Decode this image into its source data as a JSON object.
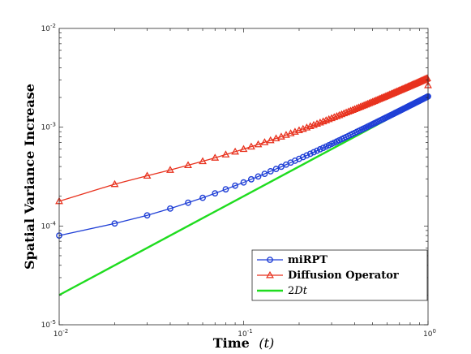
{
  "chart_data": {
    "type": "line",
    "xscale": "log",
    "yscale": "log",
    "xlim": [
      0.01,
      1
    ],
    "ylim": [
      1e-05,
      0.01
    ],
    "grid": false,
    "legend_position": "bottom-right",
    "xlabel": "Time",
    "xlabel_var": "(t)",
    "ylabel": "Spatial Variance Increase",
    "xticks": [
      {
        "value": 0.01,
        "base": "10",
        "exp": "-2"
      },
      {
        "value": 0.1,
        "base": "10",
        "exp": "-1"
      },
      {
        "value": 1,
        "base": "10",
        "exp": "0"
      }
    ],
    "yticks": [
      {
        "value": 1e-05,
        "base": "10",
        "exp": "-5"
      },
      {
        "value": 0.0001,
        "base": "10",
        "exp": "-4"
      },
      {
        "value": 0.001,
        "base": "10",
        "exp": "-3"
      },
      {
        "value": 0.01,
        "base": "10",
        "exp": "-2"
      }
    ],
    "series": [
      {
        "name": "miRPT",
        "color": "#1f3fd6",
        "marker": "circle",
        "x": [
          0.01,
          0.02,
          0.03,
          0.04,
          0.05,
          0.06,
          0.07,
          0.08,
          0.09,
          0.1,
          0.11,
          0.12,
          0.13,
          0.14,
          0.15,
          0.16,
          0.17,
          0.18,
          0.19,
          0.2,
          0.21,
          0.22,
          0.23,
          0.24,
          0.25,
          0.26,
          0.27,
          0.28,
          0.29,
          0.3,
          0.31,
          0.32,
          0.33,
          0.34,
          0.35,
          0.36,
          0.37,
          0.38,
          0.39,
          0.4,
          0.41,
          0.42,
          0.43,
          0.44,
          0.45,
          0.46,
          0.47,
          0.48,
          0.49,
          0.5,
          0.51,
          0.52,
          0.53,
          0.54,
          0.55,
          0.56,
          0.57,
          0.58,
          0.59,
          0.6,
          0.61,
          0.62,
          0.63,
          0.64,
          0.65,
          0.66,
          0.67,
          0.68,
          0.69,
          0.7,
          0.71,
          0.72,
          0.73,
          0.74,
          0.75,
          0.76,
          0.77,
          0.78,
          0.79,
          0.8,
          0.81,
          0.82,
          0.83,
          0.84,
          0.85,
          0.86,
          0.87,
          0.88,
          0.89,
          0.9,
          0.91,
          0.92,
          0.93,
          0.94,
          0.95,
          0.96,
          0.97,
          0.98,
          0.99,
          1.0
        ],
        "y": [
          8e-05,
          0.000106,
          0.000128,
          0.00015,
          0.000172,
          0.000193,
          0.000214,
          0.000235,
          0.000256,
          0.000276,
          0.000297,
          0.000317,
          0.000337,
          0.000358,
          0.000378,
          0.000398,
          0.000418,
          0.000438,
          0.000458,
          0.000478,
          0.000498,
          0.000518,
          0.000538,
          0.000558,
          0.000578,
          0.000598,
          0.000617,
          0.000637,
          0.000657,
          0.000677,
          0.000697,
          0.000716,
          0.000736,
          0.000756,
          0.000776,
          0.000795,
          0.000815,
          0.000835,
          0.000855,
          0.000874,
          0.000894,
          0.000914,
          0.000933,
          0.000953,
          0.000973,
          0.000992,
          0.001012,
          0.001032,
          0.001051,
          0.001071,
          0.001091,
          0.00111,
          0.00113,
          0.00115,
          0.001169,
          0.001189,
          0.001208,
          0.001228,
          0.001248,
          0.001267,
          0.001287,
          0.001307,
          0.001326,
          0.001346,
          0.001365,
          0.001385,
          0.001405,
          0.001424,
          0.001444,
          0.001463,
          0.001483,
          0.001503,
          0.001522,
          0.001542,
          0.001561,
          0.001581,
          0.0016,
          0.00162,
          0.00164,
          0.001659,
          0.001679,
          0.001698,
          0.001718,
          0.001737,
          0.001757,
          0.001777,
          0.001796,
          0.001816,
          0.001835,
          0.001855,
          0.001874,
          0.001894,
          0.001914,
          0.001933,
          0.001953,
          0.001972,
          0.001992,
          0.002011,
          0.002031,
          0.00205
        ]
      },
      {
        "name": "Diffusion Operator",
        "color": "#e8321e",
        "marker": "triangle",
        "x": [
          0.01,
          0.02,
          0.03,
          0.04,
          0.05,
          0.06,
          0.07,
          0.08,
          0.09,
          0.1,
          0.11,
          0.12,
          0.13,
          0.14,
          0.15,
          0.16,
          0.17,
          0.18,
          0.19,
          0.2,
          0.21,
          0.22,
          0.23,
          0.24,
          0.25,
          0.26,
          0.27,
          0.28,
          0.29,
          0.3,
          0.31,
          0.32,
          0.33,
          0.34,
          0.35,
          0.36,
          0.37,
          0.38,
          0.39,
          0.4,
          0.41,
          0.42,
          0.43,
          0.44,
          0.45,
          0.46,
          0.47,
          0.48,
          0.49,
          0.5,
          0.51,
          0.52,
          0.53,
          0.54,
          0.55,
          0.56,
          0.57,
          0.58,
          0.59,
          0.6,
          0.61,
          0.62,
          0.63,
          0.64,
          0.65,
          0.66,
          0.67,
          0.68,
          0.69,
          0.7,
          0.71,
          0.72,
          0.73,
          0.74,
          0.75,
          0.76,
          0.77,
          0.78,
          0.79,
          0.8,
          0.81,
          0.82,
          0.83,
          0.84,
          0.85,
          0.86,
          0.87,
          0.88,
          0.89,
          0.9,
          0.91,
          0.92,
          0.93,
          0.94,
          0.95,
          0.96,
          0.97,
          0.98,
          0.99,
          1.0
        ],
        "y": [
          0.000178,
          0.000265,
          0.000322,
          0.000369,
          0.000412,
          0.000452,
          0.00049,
          0.000528,
          0.000565,
          0.0006,
          0.000635,
          0.000669,
          0.000703,
          0.000736,
          0.000769,
          0.000802,
          0.000834,
          0.000866,
          0.000898,
          0.000929,
          0.00096,
          0.000991,
          0.001022,
          0.001052,
          0.001083,
          0.001113,
          0.001143,
          0.001173,
          0.001203,
          0.001232,
          0.001262,
          0.001291,
          0.00132,
          0.00135,
          0.001379,
          0.001408,
          0.001437,
          0.001465,
          0.001494,
          0.001523,
          0.001551,
          0.00158,
          0.001608,
          0.001637,
          0.001665,
          0.001693,
          0.001721,
          0.001749,
          0.001777,
          0.001805,
          0.001833,
          0.001861,
          0.001889,
          0.001917,
          0.001944,
          0.001972,
          0.002,
          0.002027,
          0.002055,
          0.002082,
          0.00211,
          0.002137,
          0.002164,
          0.002192,
          0.002219,
          0.002246,
          0.002273,
          0.0023,
          0.002327,
          0.002355,
          0.002382,
          0.002409,
          0.002436,
          0.002462,
          0.002489,
          0.002516,
          0.002543,
          0.00257,
          0.002597,
          0.002623,
          0.00265,
          0.002677,
          0.002703,
          0.00273,
          0.002757,
          0.002783,
          0.00281,
          0.002836,
          0.002863,
          0.002889,
          0.002915,
          0.002942,
          0.002968,
          0.002994,
          0.003021,
          0.003047,
          0.003073,
          0.003099,
          0.003126,
          0.00265
        ]
      },
      {
        "name": "2Dt",
        "name_parts": [
          "2",
          "Dt"
        ],
        "color": "#1fdc1f",
        "marker": "none",
        "x": [
          0.01,
          1
        ],
        "y": [
          2e-05,
          0.002
        ]
      }
    ]
  }
}
